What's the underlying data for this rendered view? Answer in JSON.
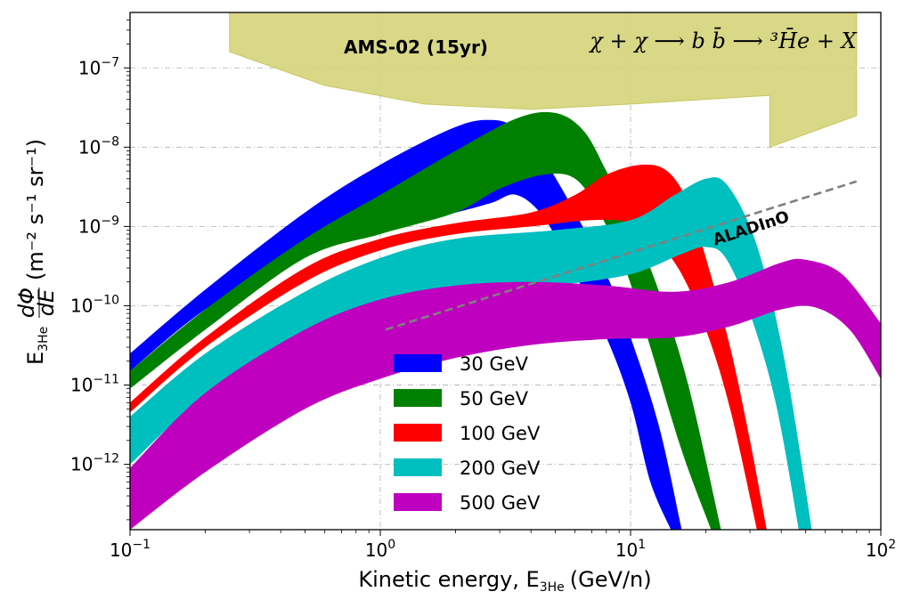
{
  "chart_data": {
    "type": "area",
    "x_scale": "log",
    "y_scale": "log",
    "xlim": [
      0.1,
      100
    ],
    "ylim": [
      1.5e-13,
      5e-07
    ],
    "grid": true,
    "legend_position": "lower-left",
    "xlabel": "Kinetic energy, E",
    "xlabel_sub": "3He",
    "xlabel_unit": "(GeV/n)",
    "ylabel_prefix": "E",
    "ylabel_sub": "3He",
    "ylabel_frac_num": "dΦ",
    "ylabel_frac_den": "dE",
    "ylabel_unit": "(m⁻² s⁻¹ sr⁻¹)",
    "x_ticks": [
      {
        "value": 0.1,
        "base": "10",
        "exp": "−1"
      },
      {
        "value": 1,
        "base": "10",
        "exp": "0"
      },
      {
        "value": 10,
        "base": "10",
        "exp": "1"
      },
      {
        "value": 100,
        "base": "10",
        "exp": "2"
      }
    ],
    "y_ticks": [
      {
        "value": 1e-12,
        "base": "10",
        "exp": "−12"
      },
      {
        "value": 1e-11,
        "base": "10",
        "exp": "−11"
      },
      {
        "value": 1e-10,
        "base": "10",
        "exp": "−10"
      },
      {
        "value": 1e-09,
        "base": "10",
        "exp": "−9"
      },
      {
        "value": 1e-08,
        "base": "10",
        "exp": "−8"
      },
      {
        "value": 1e-07,
        "base": "10",
        "exp": "−7"
      }
    ],
    "annotations": {
      "ams_label": "AMS-02 (15yr)",
      "aladino_label": "ALADInO",
      "equation": "χ + χ ⟶ b b̄ ⟶ ³H̄e + X"
    },
    "sensitivity_regions": [
      {
        "name": "AMS-02 (15yr)",
        "color": "#d4d47a",
        "points": [
          [
            0.25,
            6e-07
          ],
          [
            80,
            6e-07
          ],
          [
            80,
            2.5e-08
          ],
          [
            36,
            1e-08
          ],
          [
            36,
            4.5e-08
          ],
          [
            10,
            3.5e-08
          ],
          [
            4,
            3e-08
          ],
          [
            1.5,
            3.5e-08
          ],
          [
            0.6,
            6e-08
          ],
          [
            0.25,
            1.6e-07
          ]
        ]
      }
    ],
    "sensitivity_lines": [
      {
        "name": "ALADInO",
        "color": "#808080",
        "points": [
          [
            1.05,
            5e-11
          ],
          [
            80,
            3.7e-09
          ]
        ]
      }
    ],
    "series": [
      {
        "name": "30 GeV",
        "color": "#0000ff",
        "upper": [
          [
            0.1,
            2.5e-11
          ],
          [
            0.2,
            1.6e-10
          ],
          [
            0.5,
            1.5e-09
          ],
          [
            1,
            6e-09
          ],
          [
            2,
            1.8e-08
          ],
          [
            2.8,
            2.2e-08
          ],
          [
            3.5,
            1.7e-08
          ],
          [
            4.5,
            7e-09
          ],
          [
            6,
            1.5e-09
          ],
          [
            8,
            2.5e-10
          ],
          [
            10,
            4e-11
          ],
          [
            13,
            3e-12
          ],
          [
            16,
            1.5e-13
          ]
        ],
        "lower": [
          [
            0.1,
            1.5e-11
          ],
          [
            0.2,
            9e-11
          ],
          [
            0.5,
            5e-10
          ],
          [
            1,
            9e-10
          ],
          [
            2,
            1.5e-09
          ],
          [
            2.8,
            2e-09
          ],
          [
            3.5,
            2.5e-09
          ],
          [
            4.5,
            1.3e-09
          ],
          [
            6,
            2.5e-10
          ],
          [
            8,
            4e-11
          ],
          [
            10,
            6e-12
          ],
          [
            12,
            6e-13
          ],
          [
            14.5,
            1.5e-13
          ]
        ]
      },
      {
        "name": "50 GeV",
        "color": "#008000",
        "upper": [
          [
            0.1,
            1.5e-11
          ],
          [
            0.2,
            9e-11
          ],
          [
            0.5,
            7e-10
          ],
          [
            1,
            2.5e-09
          ],
          [
            2,
            9e-09
          ],
          [
            3.5,
            2.3e-08
          ],
          [
            5,
            2.7e-08
          ],
          [
            6.5,
            1.6e-08
          ],
          [
            8,
            5e-09
          ],
          [
            10,
            1.2e-09
          ],
          [
            13,
            1.5e-10
          ],
          [
            17,
            1e-11
          ],
          [
            23,
            1.5e-13
          ]
        ],
        "lower": [
          [
            0.1,
            9e-12
          ],
          [
            0.2,
            5e-11
          ],
          [
            0.5,
            4e-10
          ],
          [
            1,
            8e-10
          ],
          [
            2,
            1.5e-09
          ],
          [
            3,
            3e-09
          ],
          [
            4.5,
            4.5e-09
          ],
          [
            6,
            4e-09
          ],
          [
            7.5,
            1.5e-09
          ],
          [
            9.5,
            3e-10
          ],
          [
            12,
            3e-11
          ],
          [
            16,
            1.5e-12
          ],
          [
            21,
            1.5e-13
          ]
        ]
      },
      {
        "name": "100 GeV",
        "color": "#ff0000",
        "upper": [
          [
            0.1,
            6e-12
          ],
          [
            0.2,
            4e-11
          ],
          [
            0.5,
            3e-10
          ],
          [
            1,
            7e-10
          ],
          [
            2,
            1.1e-09
          ],
          [
            4,
            1.5e-09
          ],
          [
            6,
            2.5e-09
          ],
          [
            8,
            4.5e-09
          ],
          [
            11,
            6e-09
          ],
          [
            14,
            5e-09
          ],
          [
            17,
            2e-09
          ],
          [
            20,
            4e-10
          ],
          [
            25,
            3e-11
          ],
          [
            30,
            2e-12
          ],
          [
            35,
            1.5e-13
          ]
        ],
        "lower": [
          [
            0.1,
            4.5e-12
          ],
          [
            0.2,
            3e-11
          ],
          [
            0.5,
            2e-10
          ],
          [
            1,
            5e-10
          ],
          [
            2,
            8e-10
          ],
          [
            4,
            1e-09
          ],
          [
            7,
            1.2e-09
          ],
          [
            10,
            1.1e-09
          ],
          [
            13,
            6e-10
          ],
          [
            16,
            2.5e-10
          ],
          [
            20,
            5e-11
          ],
          [
            25,
            5e-12
          ],
          [
            32,
            1.5e-13
          ]
        ]
      },
      {
        "name": "200 GeV",
        "color": "#00bfbf",
        "upper": [
          [
            0.1,
            4e-12
          ],
          [
            0.2,
            2.5e-11
          ],
          [
            0.5,
            1.5e-10
          ],
          [
            1,
            4e-10
          ],
          [
            2,
            7e-10
          ],
          [
            5,
            9e-10
          ],
          [
            10,
            1.2e-09
          ],
          [
            15,
            2.5e-09
          ],
          [
            20,
            4e-09
          ],
          [
            24,
            3.5e-09
          ],
          [
            30,
            1e-09
          ],
          [
            36,
            1.5e-10
          ],
          [
            43,
            1e-11
          ],
          [
            53,
            1.5e-13
          ]
        ],
        "lower": [
          [
            0.1,
            1e-12
          ],
          [
            0.2,
            7e-12
          ],
          [
            0.5,
            3e-11
          ],
          [
            1,
            8e-11
          ],
          [
            2,
            1.3e-10
          ],
          [
            5,
            1.8e-10
          ],
          [
            10,
            2.5e-10
          ],
          [
            16,
            4.5e-10
          ],
          [
            20,
            5.5e-10
          ],
          [
            24,
            4e-10
          ],
          [
            30,
            8e-11
          ],
          [
            38,
            6e-12
          ],
          [
            47,
            1.5e-13
          ]
        ]
      },
      {
        "name": "500 GeV",
        "color": "#bf00bf",
        "upper": [
          [
            0.1,
            9e-13
          ],
          [
            0.2,
            8e-12
          ],
          [
            0.5,
            5e-11
          ],
          [
            1,
            1.2e-10
          ],
          [
            2,
            1.8e-10
          ],
          [
            4,
            2e-10
          ],
          [
            8,
            1.8e-10
          ],
          [
            15,
            1.5e-10
          ],
          [
            25,
            2e-10
          ],
          [
            40,
            3.5e-10
          ],
          [
            50,
            3.8e-10
          ],
          [
            70,
            2.5e-10
          ],
          [
            100,
            6e-11
          ]
        ],
        "lower": [
          [
            0.1,
            1.5e-13
          ],
          [
            0.2,
            8e-13
          ],
          [
            0.5,
            5e-12
          ],
          [
            1,
            1.2e-11
          ],
          [
            2,
            2.2e-11
          ],
          [
            4,
            3.2e-11
          ],
          [
            8,
            3.8e-11
          ],
          [
            15,
            4e-11
          ],
          [
            25,
            5.5e-11
          ],
          [
            40,
            9e-11
          ],
          [
            55,
            9.5e-11
          ],
          [
            75,
            5e-11
          ],
          [
            100,
            1.2e-11
          ]
        ]
      }
    ]
  }
}
